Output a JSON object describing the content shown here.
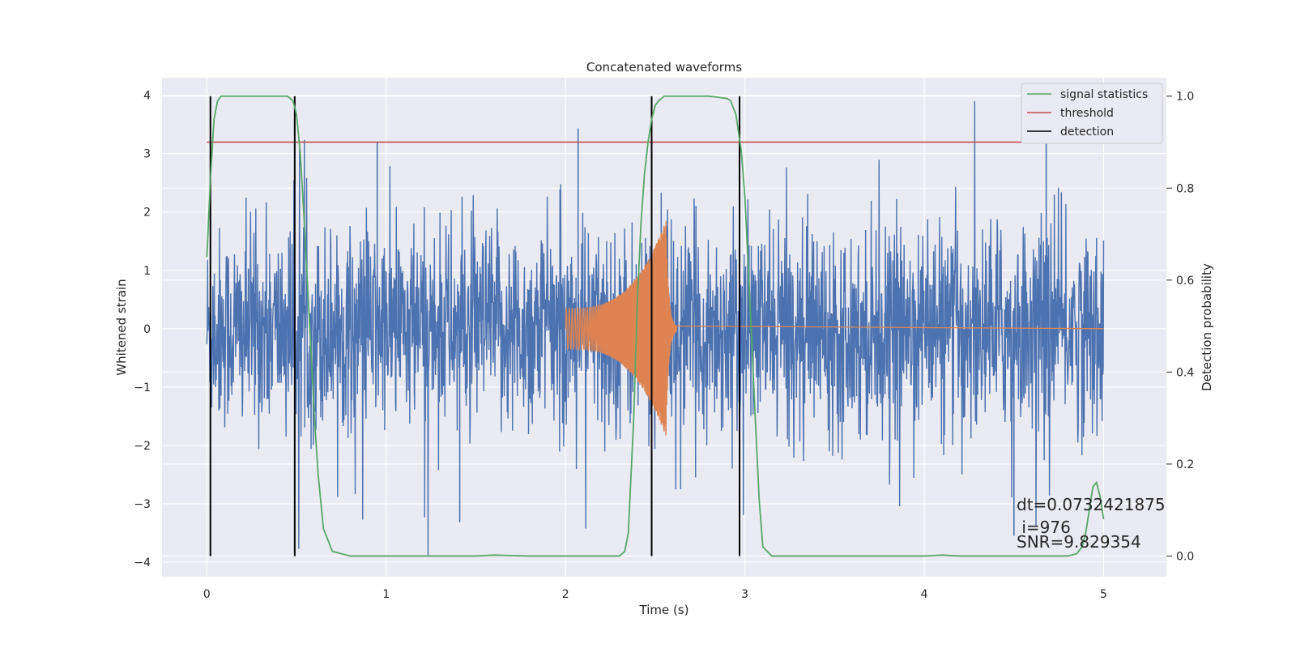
{
  "chart_data": {
    "type": "line",
    "title": "Concatenated waveforms",
    "xlabel": "Time (s)",
    "ylabel": "Whitened strain",
    "y2label": "Detection probability",
    "xlim": [
      -0.25,
      5.35
    ],
    "ylim": [
      -4.25,
      4.3
    ],
    "y2lim": [
      -0.045,
      1.04
    ],
    "xticks": [
      0,
      1,
      2,
      3,
      4,
      5
    ],
    "yticks": [
      -4,
      -3,
      -2,
      -1,
      0,
      1,
      2,
      3,
      4
    ],
    "y2ticks": [
      0.0,
      0.2,
      0.4,
      0.6,
      0.8,
      1.0
    ],
    "xtick_labels": [
      "0",
      "1",
      "2",
      "3",
      "4",
      "5"
    ],
    "ytick_labels": [
      "−4",
      "−3",
      "−2",
      "−1",
      "0",
      "1",
      "2",
      "3",
      "4"
    ],
    "y2tick_labels": [
      "0.0",
      "0.2",
      "0.4",
      "0.6",
      "0.8",
      "1.0"
    ],
    "grid": true,
    "legend_position": "top-right",
    "colors": {
      "noise": "#4c72b0",
      "waveform": "#dd8452",
      "signal_statistics": "#55a868",
      "threshold": "#c44e52",
      "detection": "#000000",
      "background": "#eaeaf2",
      "grid": "#ffffff"
    },
    "series": [
      {
        "name": "signal statistics",
        "axis": "right",
        "x": [
          0.0,
          0.02,
          0.04,
          0.06,
          0.08,
          0.1,
          0.2,
          0.3,
          0.4,
          0.45,
          0.48,
          0.5,
          0.52,
          0.54,
          0.56,
          0.58,
          0.6,
          0.62,
          0.65,
          0.7,
          0.8,
          1.0,
          1.5,
          1.6,
          1.8,
          2.0,
          2.3,
          2.33,
          2.35,
          2.38,
          2.4,
          2.42,
          2.44,
          2.46,
          2.48,
          2.5,
          2.52,
          2.55,
          2.6,
          2.8,
          2.9,
          2.92,
          2.95,
          2.98,
          3.0,
          3.02,
          3.04,
          3.06,
          3.08,
          3.1,
          3.15,
          3.5,
          4.0,
          4.1,
          4.2,
          4.5,
          4.8,
          4.85,
          4.88,
          4.9,
          4.92,
          4.94,
          4.96,
          4.98,
          5.0
        ],
        "y": [
          0.65,
          0.82,
          0.95,
          0.99,
          1.0,
          1.0,
          1.0,
          1.0,
          1.0,
          1.0,
          0.99,
          0.96,
          0.88,
          0.75,
          0.6,
          0.45,
          0.3,
          0.18,
          0.06,
          0.01,
          0.0,
          0.0,
          0.0,
          0.002,
          0.0,
          0.0,
          0.0,
          0.01,
          0.05,
          0.3,
          0.55,
          0.72,
          0.83,
          0.9,
          0.95,
          0.98,
          0.99,
          1.0,
          1.0,
          1.0,
          0.995,
          0.99,
          0.96,
          0.88,
          0.78,
          0.62,
          0.45,
          0.28,
          0.12,
          0.02,
          0.0,
          0.0,
          0.0,
          0.002,
          0.0,
          0.0,
          0.0,
          0.005,
          0.02,
          0.05,
          0.1,
          0.15,
          0.16,
          0.13,
          0.08
        ]
      },
      {
        "name": "threshold",
        "axis": "right",
        "x": [
          0.0,
          5.1
        ],
        "y": [
          0.9,
          0.9
        ]
      },
      {
        "name": "detection",
        "axis": "right",
        "type": "vlines",
        "x": [
          0.02,
          0.49,
          2.48,
          2.97
        ],
        "ymin": 0.0,
        "ymax": 1.0
      }
    ],
    "noise": {
      "x_range": [
        0.0,
        5.0
      ],
      "peak_amplitude": 3.9,
      "typical_amplitude": 1.5
    },
    "waveform": {
      "x_range": [
        2.0,
        5.0
      ],
      "onset": 2.0,
      "merger": 2.56,
      "start_amplitude": 0.35,
      "peak_amplitude": 1.85,
      "ringdown_amplitude": 0.02
    },
    "annotations": [
      "dt=0.0732421875",
      " i=976",
      "SNR=9.829354"
    ]
  }
}
